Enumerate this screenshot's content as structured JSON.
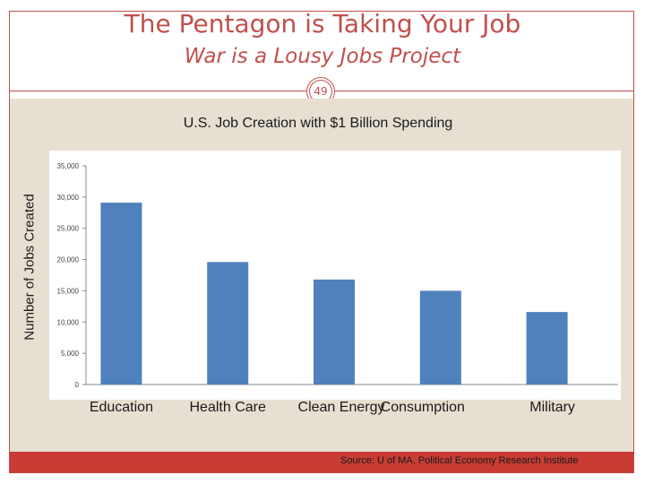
{
  "slide": {
    "title": "The Pentagon is Taking Your Job",
    "subtitle": "War is a Lousy Jobs Project",
    "page_number": "49",
    "source": "Source: U of MA, Political Economy Research Institute",
    "colors": {
      "accent": "#c0504d",
      "panel": "#e7e0d2",
      "bar": "#4f81bd",
      "footer": "#c83c33"
    }
  },
  "chart_data": {
    "type": "bar",
    "title": "U.S. Job Creation with $1 Billion Spending",
    "xlabel": "",
    "ylabel": "Number of Jobs Created",
    "categories": [
      "Education",
      "Health Care",
      "Clean Energy",
      "Consumption",
      "Military"
    ],
    "values": [
      29100,
      19600,
      16800,
      15000,
      11600
    ],
    "ylim": [
      0,
      35000
    ],
    "yticks": [
      0,
      5000,
      10000,
      15000,
      20000,
      25000,
      30000,
      35000
    ],
    "ytick_labels": [
      "0",
      "5,000",
      "10,000",
      "15,000",
      "20,000",
      "25,000",
      "30,000",
      "35,000"
    ],
    "grid": false,
    "legend": "none"
  }
}
